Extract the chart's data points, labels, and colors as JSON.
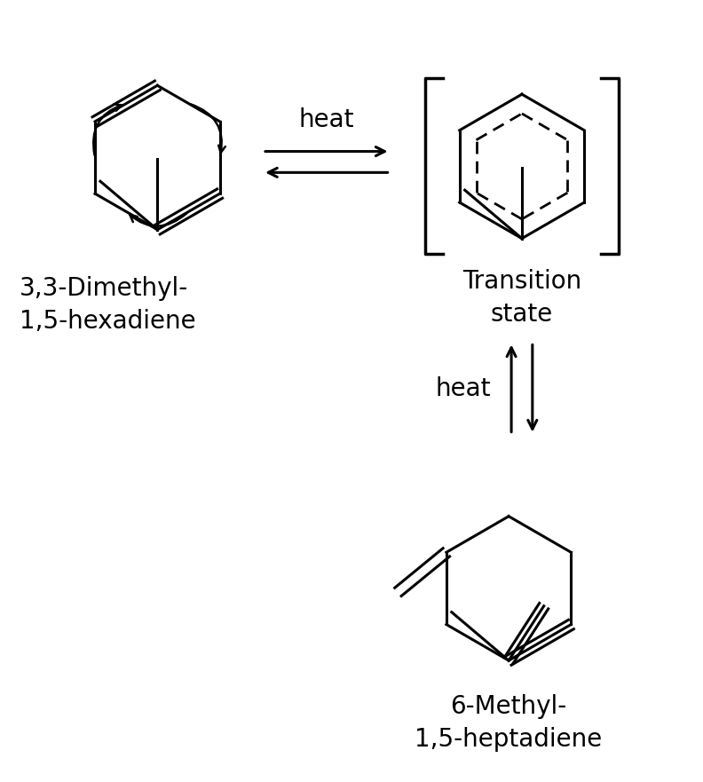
{
  "bg_color": "#ffffff",
  "label_left": "3,3-Dimethyl-\n1,5-hexadiene",
  "label_ts": "Transition\nstate",
  "label_right": "6-Methyl-\n1,5-heptadiene",
  "label_heat_top": "heat",
  "label_heat_bottom": "heat",
  "font_size_label": 20,
  "font_size_heat": 20,
  "lw": 2.2
}
